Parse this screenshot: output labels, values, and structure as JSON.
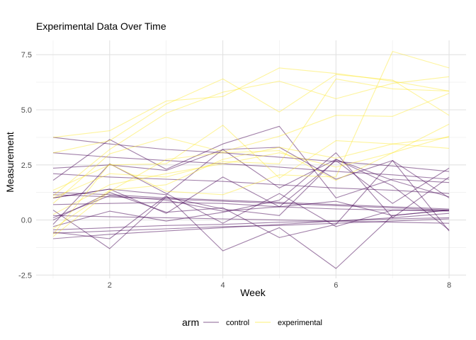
{
  "chart_data": {
    "type": "line",
    "title": "Experimental Data Over Time",
    "xlabel": "Week",
    "ylabel": "Measurement",
    "xlim": [
      0.7,
      8.3
    ],
    "ylim": [
      -2.65,
      8.15
    ],
    "x_ticks": [
      2,
      4,
      6,
      8
    ],
    "y_ticks": [
      -2.5,
      0.0,
      2.5,
      5.0,
      7.5
    ],
    "x_tick_labels": [
      "2",
      "4",
      "6",
      "8"
    ],
    "y_tick_labels": [
      "-2.5",
      "0.0",
      "2.5",
      "5.0",
      "7.5"
    ],
    "grid": true,
    "legend": {
      "title": "arm",
      "position": "bottom",
      "entries": [
        {
          "label": "control",
          "color": "#440154"
        },
        {
          "label": "experimental",
          "color": "#FDE725"
        }
      ]
    },
    "x": [
      1,
      2,
      3,
      4,
      5,
      6,
      7,
      8
    ],
    "series": [
      {
        "group": "control",
        "values": [
          3.75,
          3.45,
          3.2,
          3.05,
          2.85,
          2.65,
          2.45,
          2.2
        ]
      },
      {
        "group": "control",
        "values": [
          3.05,
          2.85,
          2.7,
          2.55,
          2.4,
          2.2,
          2.05,
          1.85
        ]
      },
      {
        "group": "control",
        "values": [
          2.35,
          2.5,
          2.25,
          3.2,
          3.3,
          1.85,
          2.7,
          1.0
        ]
      },
      {
        "group": "control",
        "values": [
          2.1,
          1.95,
          1.85,
          1.75,
          1.6,
          1.45,
          1.35,
          1.2
        ]
      },
      {
        "group": "control",
        "values": [
          1.8,
          3.65,
          2.3,
          3.45,
          4.25,
          1.0,
          1.85,
          1.7
        ]
      },
      {
        "group": "control",
        "values": [
          1.15,
          1.05,
          0.95,
          0.85,
          0.75,
          0.65,
          0.55,
          0.45
        ]
      },
      {
        "group": "control",
        "values": [
          1.0,
          1.4,
          0.3,
          1.95,
          0.6,
          2.7,
          0.75,
          2.35
        ]
      },
      {
        "group": "control",
        "values": [
          0.7,
          0.75,
          0.8,
          0.75,
          0.6,
          0.5,
          0.45,
          0.4
        ]
      },
      {
        "group": "control",
        "values": [
          0.45,
          -1.3,
          1.05,
          0.5,
          0.2,
          2.75,
          1.55,
          -0.45
        ]
      },
      {
        "group": "control",
        "values": [
          0.2,
          0.15,
          0.1,
          0.05,
          0.0,
          -0.05,
          -0.1,
          -0.15
        ]
      },
      {
        "group": "control",
        "values": [
          -0.2,
          2.55,
          1.2,
          -0.15,
          1.2,
          -0.3,
          0.45,
          0.45
        ]
      },
      {
        "group": "control",
        "values": [
          -0.45,
          -0.35,
          -0.25,
          -0.2,
          -0.1,
          -0.05,
          0.05,
          0.1
        ]
      },
      {
        "group": "control",
        "values": [
          -0.55,
          -0.85,
          1.1,
          -1.4,
          -0.35,
          -2.2,
          0.2,
          0.45
        ]
      },
      {
        "group": "control",
        "values": [
          -0.85,
          -0.65,
          -0.5,
          -0.35,
          -0.2,
          -0.05,
          0.1,
          0.3
        ]
      },
      {
        "group": "control",
        "values": [
          0.0,
          1.25,
          0.35,
          0.55,
          -0.8,
          -0.2,
          2.7,
          -0.5
        ]
      },
      {
        "group": "control",
        "values": [
          1.25,
          1.15,
          1.0,
          0.9,
          0.8,
          0.7,
          0.6,
          0.5
        ]
      },
      {
        "group": "control",
        "values": [
          -0.3,
          0.4,
          -0.05,
          0.35,
          0.9,
          3.05,
          0.1,
          1.95
        ]
      },
      {
        "group": "control",
        "values": [
          1.0,
          1.4,
          1.15,
          3.2,
          1.45,
          2.75,
          1.8,
          1.05
        ]
      },
      {
        "group": "control",
        "values": [
          -0.6,
          -0.5,
          -0.4,
          -0.3,
          -0.25,
          -0.15,
          -0.05,
          0.05
        ]
      },
      {
        "group": "control",
        "values": [
          0.1,
          1.1,
          0.9,
          0.4,
          0.6,
          0.85,
          0.2,
          0.45
        ]
      },
      {
        "group": "experimental",
        "values": [
          3.75,
          4.05,
          5.4,
          5.6,
          6.9,
          6.65,
          6.3,
          5.85
        ]
      },
      {
        "group": "experimental",
        "values": [
          3.05,
          3.6,
          5.25,
          6.4,
          4.9,
          6.6,
          6.35,
          4.75
        ]
      },
      {
        "group": "experimental",
        "values": [
          1.1,
          3.2,
          4.85,
          5.8,
          6.3,
          5.5,
          6.2,
          6.5
        ]
      },
      {
        "group": "experimental",
        "values": [
          0.75,
          3.0,
          3.75,
          3.1,
          3.8,
          4.75,
          4.7,
          5.75
        ]
      },
      {
        "group": "experimental",
        "values": [
          1.35,
          2.5,
          2.55,
          4.3,
          1.9,
          3.6,
          3.45,
          3.25
        ]
      },
      {
        "group": "experimental",
        "values": [
          -0.4,
          1.35,
          1.6,
          2.75,
          3.3,
          2.8,
          3.45,
          3.75
        ]
      },
      {
        "group": "experimental",
        "values": [
          0.25,
          1.6,
          2.1,
          2.55,
          3.05,
          2.4,
          3.05,
          3.8
        ]
      },
      {
        "group": "experimental",
        "values": [
          -0.65,
          2.55,
          1.3,
          1.15,
          2.05,
          1.95,
          7.65,
          6.9
        ]
      },
      {
        "group": "experimental",
        "values": [
          1.0,
          2.1,
          1.95,
          2.65,
          2.55,
          6.4,
          5.95,
          5.85
        ]
      },
      {
        "group": "experimental",
        "values": [
          -0.75,
          1.3,
          2.75,
          3.05,
          3.15,
          1.8,
          3.05,
          4.35
        ]
      }
    ]
  }
}
